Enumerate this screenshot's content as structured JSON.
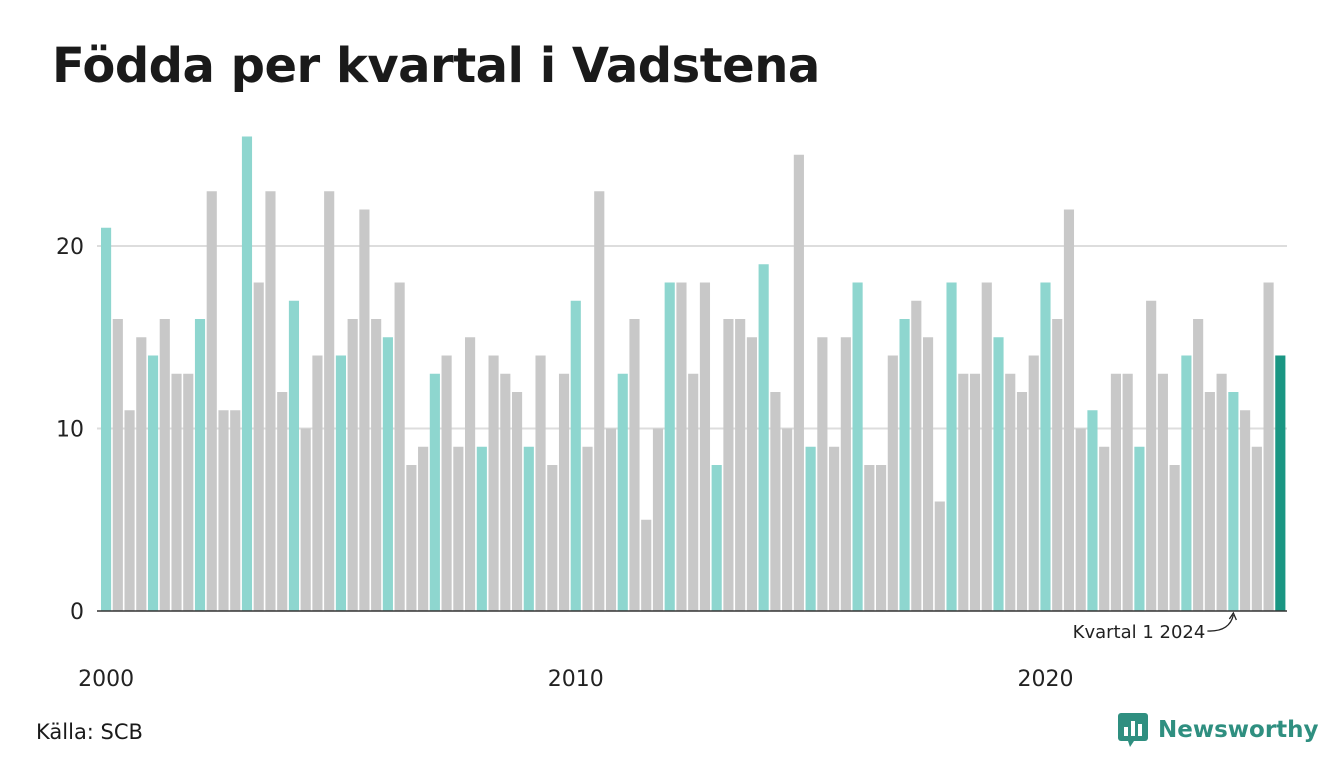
{
  "title": "Födda per kvartal i Vadstena",
  "source": "Källa: SCB",
  "brand": {
    "name": "Newsworthy",
    "icon": "newsworthy-logo-icon"
  },
  "colors": {
    "q1": "#8ed6cf",
    "other": "#c8c8c8",
    "latest": "#1a9683",
    "grid": "#dddddd",
    "axis": "#333333",
    "brand": "#2f8f80"
  },
  "chart_data": {
    "type": "bar",
    "title": "Födda per kvartal i Vadstena",
    "start_year": 2000,
    "values": [
      21,
      16,
      11,
      15,
      14,
      16,
      13,
      13,
      16,
      23,
      11,
      11,
      26,
      18,
      23,
      12,
      17,
      10,
      14,
      23,
      14,
      16,
      22,
      16,
      15,
      18,
      8,
      9,
      13,
      14,
      9,
      15,
      9,
      14,
      13,
      12,
      9,
      14,
      8,
      13,
      17,
      9,
      23,
      10,
      13,
      16,
      5,
      10,
      18,
      18,
      13,
      18,
      8,
      16,
      16,
      15,
      19,
      12,
      10,
      25,
      9,
      15,
      9,
      15,
      18,
      8,
      8,
      14,
      16,
      17,
      15,
      6,
      18,
      13,
      13,
      18,
      15,
      13,
      12,
      14,
      18,
      16,
      22,
      10,
      11,
      9,
      13,
      13,
      9,
      17,
      13,
      8,
      14,
      16,
      12,
      13,
      12,
      11,
      9,
      18,
      14
    ],
    "x_ticks": [
      "2000",
      "2010",
      "2020"
    ],
    "y_ticks": [
      "0",
      "10",
      "20"
    ],
    "ylim": [
      0,
      26
    ],
    "grid": true,
    "highlight": "first quarter of each year",
    "annotation": "Kvartal 1 2024"
  }
}
